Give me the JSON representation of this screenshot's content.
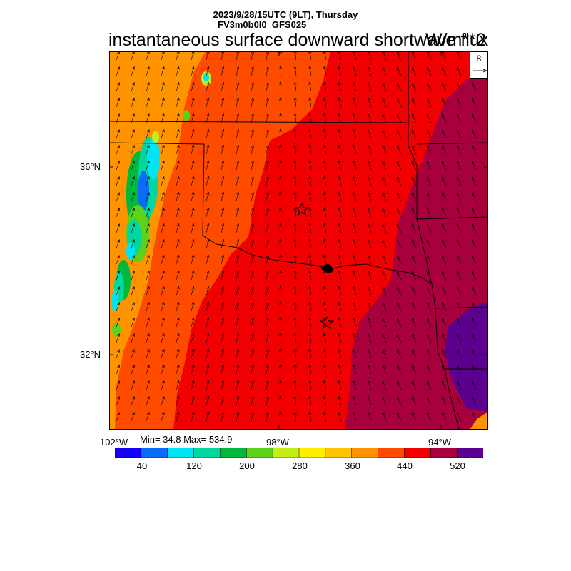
{
  "header": {
    "line1": "2023/9/28/15UTC (9LT), Thursday",
    "line2": "FV3m0b0l0_GFS025"
  },
  "title": "instantaneous surface downward shortwave flux",
  "units": "W/m**2",
  "vector_reference": {
    "value": "8"
  },
  "axes": {
    "lat_labels": [
      "36°N",
      "32°N"
    ],
    "lon_labels": [
      "102°W",
      "98°W",
      "94°W"
    ]
  },
  "stats": {
    "text": "Min= 34.8 Max= 534.9",
    "min": 34.8,
    "max": 534.9
  },
  "colorbar": {
    "colors": [
      "#1400f2",
      "#0a6cf7",
      "#00e5f5",
      "#00d6a0",
      "#00b83c",
      "#5ed11a",
      "#c4ef14",
      "#ffee00",
      "#ffc400",
      "#ff9300",
      "#ff4b00",
      "#f00000",
      "#a8003c",
      "#5c008f"
    ],
    "labels": [
      "40",
      "120",
      "200",
      "280",
      "360",
      "440",
      "520"
    ]
  },
  "markers": [
    "star",
    "star"
  ]
}
